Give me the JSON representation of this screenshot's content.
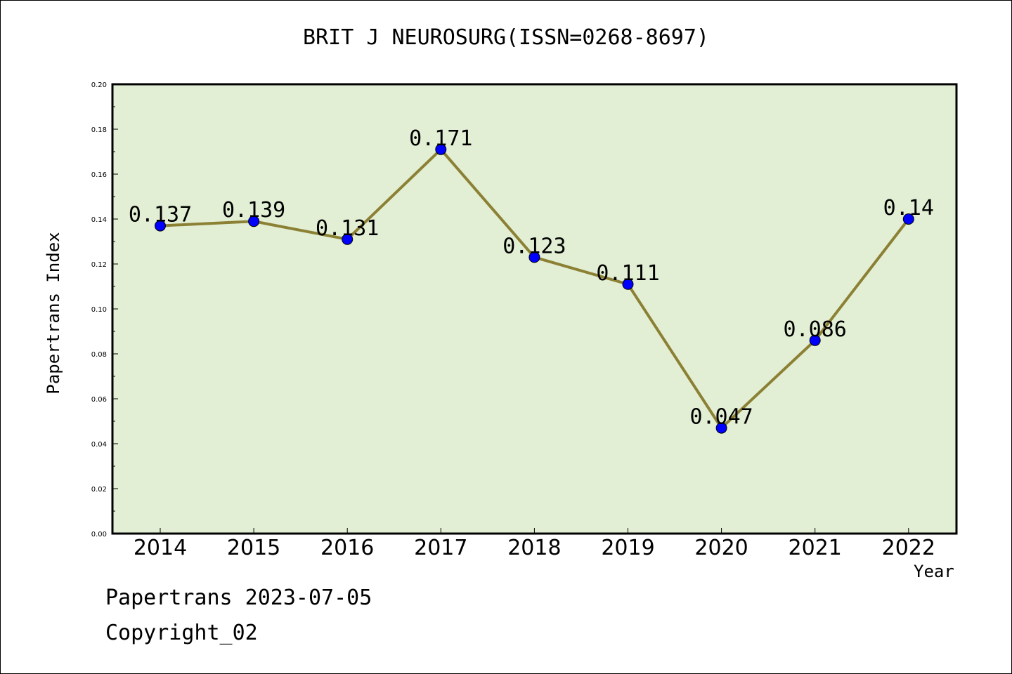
{
  "chart_data": {
    "type": "line",
    "title": "BRIT J NEUROSURG(ISSN=0268-8697)",
    "xlabel": "Year",
    "ylabel": "Papertrans Index",
    "categories": [
      "2014",
      "2015",
      "2016",
      "2017",
      "2018",
      "2019",
      "2020",
      "2021",
      "2022"
    ],
    "values": [
      0.137,
      0.139,
      0.131,
      0.171,
      0.123,
      0.111,
      0.047,
      0.086,
      0.14
    ],
    "data_labels": [
      "0.137",
      "0.139",
      "0.131",
      "0.171",
      "0.123",
      "0.111",
      "0.047",
      "0.086",
      "0.14"
    ],
    "ylim": [
      0,
      0.2
    ],
    "yticks": [
      "0.00",
      "0.02",
      "0.04",
      "0.06",
      "0.08",
      "0.10",
      "0.12",
      "0.14",
      "0.16",
      "0.18",
      "0.20"
    ],
    "grid": false,
    "colors": {
      "plot_background": "#e2efd4",
      "line": "#8b8034",
      "marker": "#0000ff"
    }
  },
  "footer": {
    "line1": "Papertrans 2023-07-05",
    "line2": "Copyright_02"
  }
}
